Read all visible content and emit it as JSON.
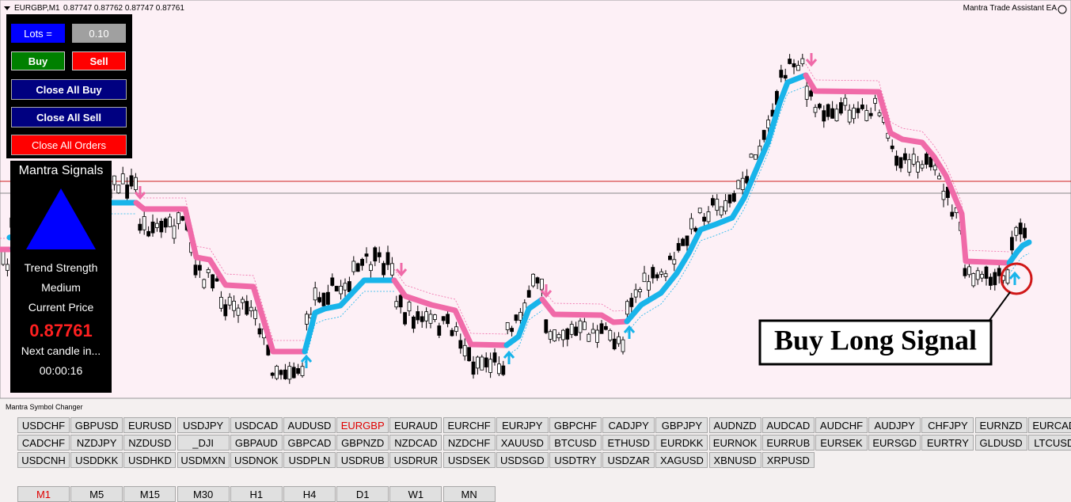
{
  "header": {
    "symbol": "EURGBP,M1",
    "prices": "0.87747 0.87762 0.87747 0.87761",
    "ea_name": "Mantra Trade Assistant EA"
  },
  "trade_panel": {
    "lots_label": "Lots =",
    "lots_value": "0.10",
    "buy": "Buy",
    "sell": "Sell",
    "close_all_buy": "Close All Buy",
    "close_all_sell": "Close All Sell",
    "close_all_orders": "Close All Orders"
  },
  "signals_panel": {
    "title": "Mantra Signals",
    "trend_label": "Trend Strength",
    "trend_value": "Medium",
    "price_label": "Current Price",
    "price_value": "0.87761",
    "next_label": "Next candle in...",
    "next_value": "00:00:16"
  },
  "annotation": "Buy Long Signal",
  "symbols": {
    "title": "Mantra Symbol Changer",
    "rows": [
      [
        "USDCHF",
        "GBPUSD",
        "EURUSD",
        "USDJPY",
        "USDCAD",
        "AUDUSD",
        "EURGBP",
        "EURAUD",
        "EURCHF",
        "EURJPY",
        "GBPCHF",
        "CADJPY",
        "GBPJPY",
        "AUDNZD",
        "AUDCAD",
        "AUDCHF",
        "AUDJPY",
        "CHFJPY",
        "EURNZD",
        "EURCAD"
      ],
      [
        "CADCHF",
        "NZDJPY",
        "NZDUSD",
        "_DJI",
        "GBPAUD",
        "GBPCAD",
        "GBPNZD",
        "NZDCAD",
        "NZDCHF",
        "XAUUSD",
        "BTCUSD",
        "ETHUSD",
        "EURDKK",
        "EURNOK",
        "EURRUB",
        "EURSEK",
        "EURSGD",
        "EURTRY",
        "GLDUSD",
        "LTCUSD"
      ],
      [
        "USDCNH",
        "USDDKK",
        "USDHKD",
        "USDMXN",
        "USDNOK",
        "USDPLN",
        "USDRUB",
        "USDRUR",
        "USDSEK",
        "USDSGD",
        "USDTRY",
        "USDZAR",
        "XAGUSD",
        "XBNUSD",
        "XRPUSD"
      ]
    ]
  },
  "timeframes": [
    "M1",
    "M5",
    "M15",
    "M30",
    "H1",
    "H4",
    "D1",
    "W1",
    "MN"
  ]
}
